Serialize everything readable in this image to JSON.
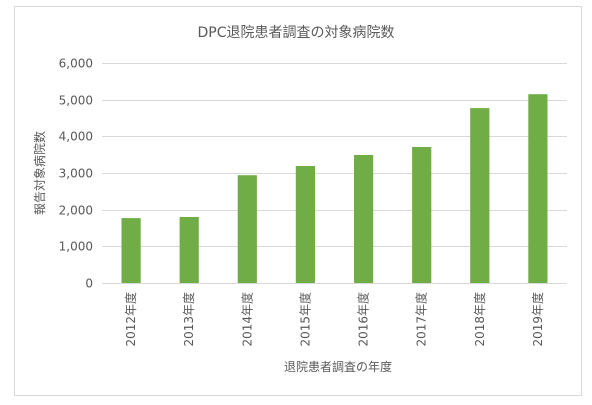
{
  "chart_data": {
    "type": "bar",
    "title": "DPC退院患者調査の対象病院数",
    "xlabel": "退院患者調査の年度",
    "ylabel": "報告対象病院数",
    "categories": [
      "2012年度",
      "2013年度",
      "2014年度",
      "2015年度",
      "2016年度",
      "2017年度",
      "2018年度",
      "2019年度"
    ],
    "values": [
      1770,
      1800,
      2940,
      3190,
      3490,
      3710,
      4770,
      5150
    ],
    "ylim": [
      0,
      6000
    ],
    "yticks": [
      0,
      1000,
      2000,
      3000,
      4000,
      5000,
      6000
    ],
    "ytick_labels": [
      "0",
      "1,000",
      "2,000",
      "3,000",
      "4,000",
      "5,000",
      "6,000"
    ],
    "grid": true,
    "legend": "none",
    "colors": {
      "bar": "#70AD47",
      "grid": "#D9D9D9",
      "border": "#D9D9D9",
      "text": "#595959"
    }
  }
}
